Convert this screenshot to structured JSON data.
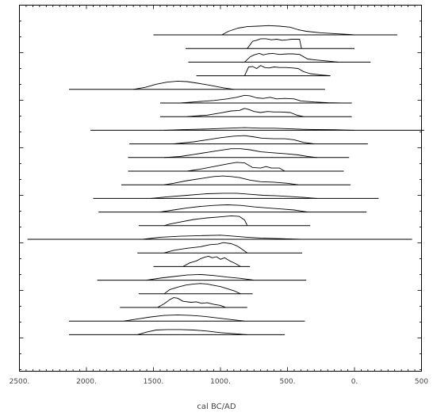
{
  "chart_data": {
    "type": "line",
    "title": "",
    "xlabel": "cal BC/AD",
    "ylabel": "",
    "x_scale": "reversed",
    "xlim": [
      2500,
      -500
    ],
    "x_ticks": [
      {
        "value": 2500,
        "label": "2500."
      },
      {
        "value": 2000,
        "label": "2000."
      },
      {
        "value": 1500,
        "label": "1500."
      },
      {
        "value": 1000,
        "label": "1000."
      },
      {
        "value": 500,
        "label": "500."
      },
      {
        "value": 0,
        "label": "0."
      },
      {
        "value": -500,
        "label": "500"
      }
    ],
    "grid": false,
    "legend": "none",
    "line_color": "#000000",
    "series": [
      {
        "range": [
          1500,
          -320
        ],
        "dist": [
          [
            990,
            0
          ],
          [
            940,
            0.35
          ],
          [
            870,
            0.65
          ],
          [
            800,
            0.8
          ],
          [
            720,
            0.85
          ],
          [
            640,
            0.9
          ],
          [
            560,
            0.85
          ],
          [
            480,
            0.75
          ],
          [
            420,
            0.5
          ],
          [
            360,
            0.35
          ],
          [
            250,
            0.2
          ],
          [
            150,
            0.12
          ],
          [
            40,
            0.05
          ],
          [
            0,
            0
          ]
        ]
      },
      {
        "range": [
          1260,
          0
        ],
        "dist": [
          [
            800,
            0
          ],
          [
            760,
            0.7
          ],
          [
            730,
            0.8
          ],
          [
            700,
            0.95
          ],
          [
            660,
            0.95
          ],
          [
            620,
            0.85
          ],
          [
            580,
            0.9
          ],
          [
            540,
            0.8
          ],
          [
            500,
            0.85
          ],
          [
            470,
            0.9
          ],
          [
            410,
            0.9
          ],
          [
            395,
            0
          ]
        ]
      },
      {
        "range": [
          1240,
          -120
        ],
        "dist": [
          [
            820,
            0
          ],
          [
            780,
            0.5
          ],
          [
            750,
            0.7
          ],
          [
            710,
            0.85
          ],
          [
            680,
            0.7
          ],
          [
            650,
            0.8
          ],
          [
            610,
            0.85
          ],
          [
            560,
            0.75
          ],
          [
            500,
            0.8
          ],
          [
            460,
            0.8
          ],
          [
            410,
            0.75
          ],
          [
            350,
            0.3
          ],
          [
            280,
            0.2
          ],
          [
            200,
            0.1
          ],
          [
            120,
            0
          ]
        ]
      },
      {
        "range": [
          1180,
          180
        ],
        "dist": [
          [
            820,
            0
          ],
          [
            790,
            0.85
          ],
          [
            760,
            0.9
          ],
          [
            730,
            0.7
          ],
          [
            700,
            1.0
          ],
          [
            670,
            0.8
          ],
          [
            640,
            0.75
          ],
          [
            600,
            0.85
          ],
          [
            560,
            0.8
          ],
          [
            510,
            0.8
          ],
          [
            460,
            0.75
          ],
          [
            420,
            0.7
          ],
          [
            380,
            0.4
          ],
          [
            330,
            0.2
          ],
          [
            250,
            0.08
          ],
          [
            180,
            0
          ]
        ]
      },
      {
        "range": [
          2130,
          220
        ],
        "dist": [
          [
            1650,
            0
          ],
          [
            1560,
            0.2
          ],
          [
            1480,
            0.5
          ],
          [
            1400,
            0.7
          ],
          [
            1320,
            0.8
          ],
          [
            1250,
            0.75
          ],
          [
            1170,
            0.6
          ],
          [
            1080,
            0.4
          ],
          [
            980,
            0.15
          ],
          [
            900,
            0
          ]
        ]
      },
      {
        "range": [
          1450,
          20
        ],
        "dist": [
          [
            1300,
            0
          ],
          [
            1180,
            0.12
          ],
          [
            1050,
            0.25
          ],
          [
            950,
            0.4
          ],
          [
            880,
            0.55
          ],
          [
            820,
            0.75
          ],
          [
            780,
            0.7
          ],
          [
            730,
            0.5
          ],
          [
            680,
            0.45
          ],
          [
            630,
            0.55
          ],
          [
            580,
            0.4
          ],
          [
            520,
            0.45
          ],
          [
            450,
            0.4
          ],
          [
            400,
            0.2
          ],
          [
            300,
            0.1
          ],
          [
            200,
            0.03
          ],
          [
            100,
            0
          ]
        ]
      },
      {
        "range": [
          1450,
          20
        ],
        "dist": [
          [
            1250,
            0
          ],
          [
            1100,
            0.15
          ],
          [
            1000,
            0.35
          ],
          [
            920,
            0.55
          ],
          [
            860,
            0.6
          ],
          [
            820,
            0.8
          ],
          [
            790,
            0.7
          ],
          [
            750,
            0.5
          ],
          [
            700,
            0.4
          ],
          [
            650,
            0.5
          ],
          [
            600,
            0.45
          ],
          [
            550,
            0.45
          ],
          [
            480,
            0.4
          ],
          [
            430,
            0.15
          ],
          [
            380,
            0
          ]
        ]
      },
      {
        "range": [
          1970,
          -520
        ],
        "dist": [
          [
            1420,
            0
          ],
          [
            1300,
            0.05
          ],
          [
            1100,
            0.12
          ],
          [
            950,
            0.2
          ],
          [
            820,
            0.25
          ],
          [
            700,
            0.2
          ],
          [
            600,
            0.2
          ],
          [
            500,
            0.15
          ],
          [
            400,
            0.1
          ],
          [
            300,
            0.07
          ],
          [
            150,
            0.05
          ],
          [
            0,
            0
          ]
        ]
      },
      {
        "range": [
          1680,
          -100
        ],
        "dist": [
          [
            1350,
            0
          ],
          [
            1200,
            0.2
          ],
          [
            1100,
            0.4
          ],
          [
            1000,
            0.6
          ],
          [
            900,
            0.75
          ],
          [
            820,
            0.8
          ],
          [
            760,
            0.7
          ],
          [
            690,
            0.55
          ],
          [
            600,
            0.5
          ],
          [
            520,
            0.5
          ],
          [
            450,
            0.4
          ],
          [
            380,
            0.15
          ],
          [
            300,
            0
          ]
        ]
      },
      {
        "range": [
          1690,
          40
        ],
        "dist": [
          [
            1420,
            0
          ],
          [
            1300,
            0.1
          ],
          [
            1200,
            0.3
          ],
          [
            1100,
            0.5
          ],
          [
            1000,
            0.7
          ],
          [
            920,
            0.85
          ],
          [
            850,
            0.85
          ],
          [
            780,
            0.75
          ],
          [
            700,
            0.55
          ],
          [
            600,
            0.45
          ],
          [
            500,
            0.35
          ],
          [
            420,
            0.25
          ],
          [
            350,
            0.1
          ],
          [
            280,
            0
          ]
        ]
      },
      {
        "range": [
          1690,
          80
        ],
        "dist": [
          [
            1250,
            0
          ],
          [
            1150,
            0.2
          ],
          [
            1050,
            0.45
          ],
          [
            950,
            0.7
          ],
          [
            880,
            0.85
          ],
          [
            820,
            0.8
          ],
          [
            760,
            0.35
          ],
          [
            700,
            0.3
          ],
          [
            660,
            0.45
          ],
          [
            620,
            0.3
          ],
          [
            560,
            0.3
          ],
          [
            520,
            0
          ]
        ]
      },
      {
        "range": [
          1740,
          30
        ],
        "dist": [
          [
            1420,
            0
          ],
          [
            1350,
            0.15
          ],
          [
            1250,
            0.4
          ],
          [
            1150,
            0.6
          ],
          [
            1050,
            0.8
          ],
          [
            980,
            0.85
          ],
          [
            920,
            0.8
          ],
          [
            860,
            0.7
          ],
          [
            780,
            0.45
          ],
          [
            700,
            0.3
          ],
          [
            600,
            0.25
          ],
          [
            500,
            0.15
          ],
          [
            420,
            0
          ]
        ]
      },
      {
        "range": [
          1950,
          -180
        ],
        "dist": [
          [
            1520,
            0
          ],
          [
            1400,
            0.15
          ],
          [
            1250,
            0.3
          ],
          [
            1100,
            0.45
          ],
          [
            980,
            0.5
          ],
          [
            880,
            0.5
          ],
          [
            780,
            0.4
          ],
          [
            680,
            0.3
          ],
          [
            580,
            0.25
          ],
          [
            480,
            0.18
          ],
          [
            380,
            0.1
          ],
          [
            280,
            0
          ]
        ]
      },
      {
        "range": [
          1910,
          -90
        ],
        "dist": [
          [
            1450,
            0
          ],
          [
            1350,
            0.2
          ],
          [
            1250,
            0.4
          ],
          [
            1150,
            0.55
          ],
          [
            1050,
            0.65
          ],
          [
            950,
            0.7
          ],
          [
            850,
            0.65
          ],
          [
            750,
            0.5
          ],
          [
            650,
            0.4
          ],
          [
            550,
            0.3
          ],
          [
            450,
            0.2
          ],
          [
            350,
            0
          ]
        ]
      },
      {
        "range": [
          1610,
          330
        ],
        "dist": [
          [
            1420,
            0
          ],
          [
            1380,
            0.15
          ],
          [
            1300,
            0.35
          ],
          [
            1200,
            0.6
          ],
          [
            1100,
            0.75
          ],
          [
            1000,
            0.85
          ],
          [
            920,
            0.95
          ],
          [
            860,
            0.9
          ],
          [
            820,
            0.55
          ],
          [
            800,
            0
          ]
        ]
      },
      {
        "range": [
          2440,
          -430
        ],
        "dist": [
          [
            1580,
            0
          ],
          [
            1450,
            0.2
          ],
          [
            1300,
            0.3
          ],
          [
            1150,
            0.35
          ],
          [
            1000,
            0.4
          ],
          [
            900,
            0.3
          ],
          [
            800,
            0.2
          ],
          [
            700,
            0.12
          ],
          [
            550,
            0.06
          ],
          [
            400,
            0
          ]
        ]
      },
      {
        "range": [
          1620,
          390
        ],
        "dist": [
          [
            1420,
            0
          ],
          [
            1350,
            0.25
          ],
          [
            1250,
            0.45
          ],
          [
            1150,
            0.6
          ],
          [
            1080,
            0.8
          ],
          [
            1020,
            0.85
          ],
          [
            980,
            1.0
          ],
          [
            920,
            0.9
          ],
          [
            880,
            0.7
          ],
          [
            850,
            0.45
          ],
          [
            800,
            0
          ]
        ]
      },
      {
        "range": [
          1500,
          780
        ],
        "dist": [
          [
            1280,
            0
          ],
          [
            1230,
            0.35
          ],
          [
            1180,
            0.55
          ],
          [
            1150,
            0.75
          ],
          [
            1120,
            0.9
          ],
          [
            1090,
            1.0
          ],
          [
            1060,
            0.85
          ],
          [
            1030,
            0.95
          ],
          [
            1000,
            0.7
          ],
          [
            970,
            0.85
          ],
          [
            930,
            0.55
          ],
          [
            890,
            0.3
          ],
          [
            850,
            0
          ]
        ]
      },
      {
        "range": [
          1920,
          360
        ],
        "dist": [
          [
            1550,
            0
          ],
          [
            1450,
            0.2
          ],
          [
            1350,
            0.35
          ],
          [
            1250,
            0.5
          ],
          [
            1150,
            0.55
          ],
          [
            1050,
            0.45
          ],
          [
            950,
            0.3
          ],
          [
            850,
            0.18
          ],
          [
            750,
            0
          ]
        ]
      },
      {
        "range": [
          1610,
          760
        ],
        "dist": [
          [
            1420,
            0
          ],
          [
            1380,
            0.4
          ],
          [
            1320,
            0.65
          ],
          [
            1260,
            0.85
          ],
          [
            1200,
            0.95
          ],
          [
            1150,
            1.0
          ],
          [
            1100,
            0.95
          ],
          [
            1060,
            0.85
          ],
          [
            1000,
            0.7
          ],
          [
            950,
            0.5
          ],
          [
            900,
            0.3
          ],
          [
            850,
            0
          ]
        ]
      },
      {
        "range": [
          1750,
          800
        ],
        "dist": [
          [
            1470,
            0
          ],
          [
            1420,
            0.35
          ],
          [
            1380,
            0.75
          ],
          [
            1350,
            0.95
          ],
          [
            1320,
            0.9
          ],
          [
            1280,
            0.6
          ],
          [
            1220,
            0.5
          ],
          [
            1180,
            0.55
          ],
          [
            1140,
            0.4
          ],
          [
            1100,
            0.45
          ],
          [
            1050,
            0.3
          ],
          [
            1000,
            0.2
          ],
          [
            960,
            0
          ]
        ]
      },
      {
        "range": [
          2130,
          370
        ],
        "dist": [
          [
            1720,
            0
          ],
          [
            1620,
            0.2
          ],
          [
            1520,
            0.4
          ],
          [
            1420,
            0.55
          ],
          [
            1320,
            0.6
          ],
          [
            1220,
            0.55
          ],
          [
            1120,
            0.45
          ],
          [
            1020,
            0.3
          ],
          [
            920,
            0.15
          ],
          [
            820,
            0
          ]
        ]
      },
      {
        "range": [
          2130,
          520
        ],
        "dist": [
          [
            1620,
            0
          ],
          [
            1550,
            0.25
          ],
          [
            1480,
            0.45
          ],
          [
            1400,
            0.5
          ],
          [
            1300,
            0.5
          ],
          [
            1200,
            0.45
          ],
          [
            1100,
            0.35
          ],
          [
            1000,
            0.2
          ],
          [
            900,
            0.1
          ],
          [
            800,
            0
          ]
        ]
      }
    ]
  }
}
